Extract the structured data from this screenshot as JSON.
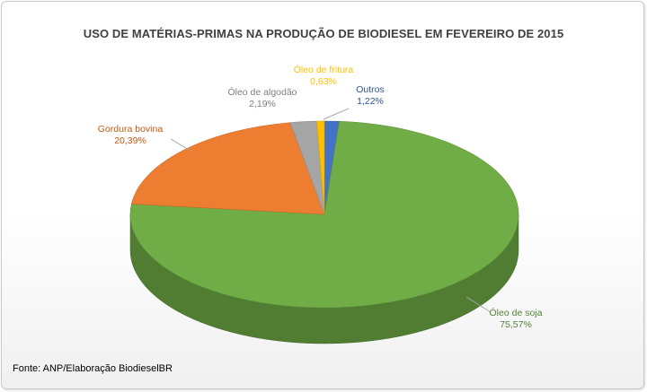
{
  "chart_data": {
    "type": "pie",
    "title": "USO DE MATÉRIAS-PRIMAS NA PRODUÇÃO DE BIODIESEL EM FEVEREIRO DE 2015",
    "source": "Fonte: ANP/Elaboração BiodieselBR",
    "slices": [
      {
        "label": "Outros",
        "value_label": "1,22%",
        "value": 1.22,
        "color": "#4472c4",
        "text_color": "#2f5597"
      },
      {
        "label": "Óleo de soja",
        "value_label": "75,57%",
        "value": 75.57,
        "color": "#70ad47",
        "text_color": "#548235"
      },
      {
        "label": "Gordura bovina",
        "value_label": "20,39%",
        "value": 20.39,
        "color": "#ed7d31",
        "text_color": "#c55a11"
      },
      {
        "label": "Óleo de algodão",
        "value_label": "2,19%",
        "value": 2.19,
        "color": "#a5a5a5",
        "text_color": "#7f7f7f"
      },
      {
        "label": "Óleo de fritura",
        "value_label": "0,63%",
        "value": 0.63,
        "color": "#ffc000",
        "text_color": "#ffc000"
      }
    ],
    "legend": "none"
  }
}
